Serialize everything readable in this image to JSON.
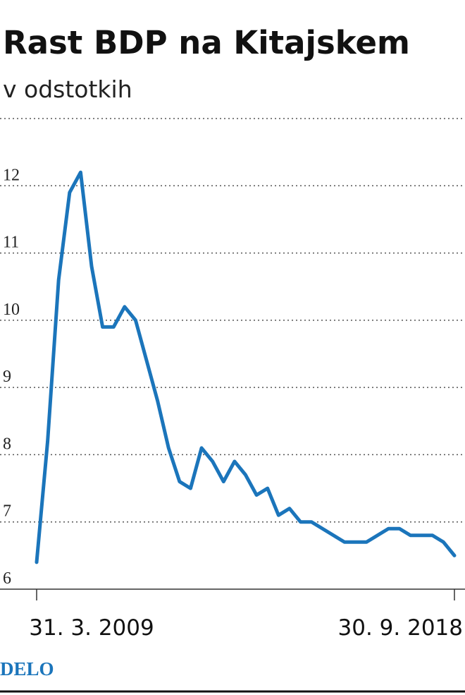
{
  "chart_data": {
    "type": "line",
    "title": "Rast BDP na Kitajskem",
    "subtitle": "v odstotkih",
    "source": "DELO",
    "categories": [
      "31. 3. 2009",
      null,
      null,
      null,
      null,
      null,
      null,
      null,
      null,
      null,
      null,
      null,
      null,
      null,
      null,
      null,
      null,
      null,
      null,
      null,
      null,
      null,
      null,
      null,
      null,
      null,
      null,
      null,
      null,
      null,
      null,
      null,
      null,
      null,
      null,
      null,
      null,
      null,
      "30. 9. 2018"
    ],
    "series": [
      {
        "name": "BDP",
        "color": "#1b75bb",
        "values": [
          6.4,
          8.2,
          10.6,
          11.9,
          12.2,
          10.8,
          9.9,
          9.9,
          10.2,
          10.0,
          9.4,
          8.8,
          8.1,
          7.6,
          7.5,
          8.1,
          7.9,
          7.6,
          7.9,
          7.7,
          7.4,
          7.5,
          7.1,
          7.2,
          7.0,
          7.0,
          6.9,
          6.8,
          6.7,
          6.7,
          6.7,
          6.8,
          6.9,
          6.9,
          6.8,
          6.8,
          6.8,
          6.7,
          6.5
        ]
      }
    ],
    "ylim": [
      6,
      13
    ],
    "yticks": [
      6,
      7,
      8,
      9,
      10,
      11,
      12
    ],
    "grid": true
  }
}
